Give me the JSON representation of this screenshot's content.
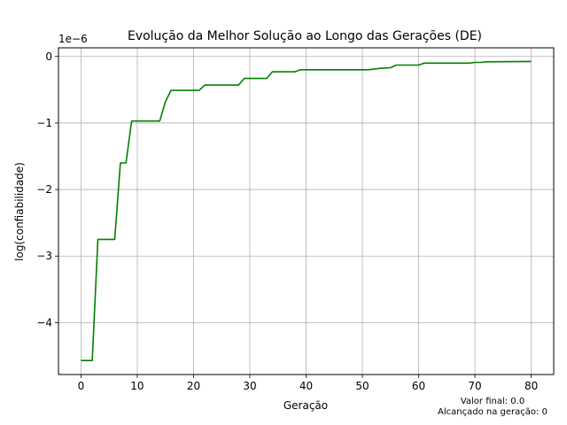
{
  "chart_data": {
    "type": "line",
    "title": "Evolução da Melhor Solução ao Longo das Gerações (DE)",
    "xlabel": "Geração",
    "ylabel": "log(confiabilidade)",
    "y_offset_label": "1e−6",
    "xlim": [
      -4,
      84
    ],
    "ylim": [
      -4.78,
      0.13
    ],
    "x_ticks": [
      0,
      10,
      20,
      30,
      40,
      50,
      60,
      70,
      80
    ],
    "x_tick_labels": [
      "0",
      "10",
      "20",
      "30",
      "40",
      "50",
      "60",
      "70",
      "80"
    ],
    "y_ticks": [
      0,
      -1,
      -2,
      -3,
      -4
    ],
    "y_tick_labels": [
      "0",
      "−1",
      "−2",
      "−3",
      "−4"
    ],
    "grid": true,
    "line_color": "#008000",
    "series": [
      {
        "x": [
          0,
          2,
          3,
          6,
          7,
          8,
          9,
          14,
          15,
          16,
          21,
          22,
          28,
          29,
          33,
          34,
          38,
          39,
          51,
          53,
          55,
          56,
          60,
          61,
          69,
          70,
          71,
          72,
          80
        ],
        "y": [
          -4.57,
          -4.57,
          -2.75,
          -2.75,
          -1.6,
          -1.6,
          -0.97,
          -0.97,
          -0.68,
          -0.51,
          -0.51,
          -0.43,
          -0.43,
          -0.33,
          -0.33,
          -0.23,
          -0.23,
          -0.2,
          -0.2,
          -0.18,
          -0.17,
          -0.13,
          -0.13,
          -0.1,
          -0.1,
          -0.09,
          -0.09,
          -0.08,
          -0.075
        ]
      }
    ],
    "annotations": [
      "Valor final: 0.0",
      "Alcançado na geração: 0"
    ]
  }
}
